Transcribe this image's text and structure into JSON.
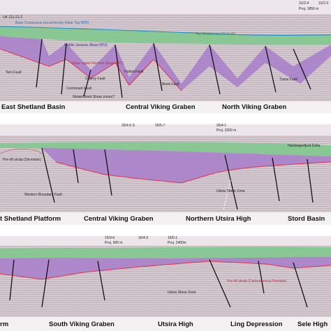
{
  "panels": [
    {
      "labels": [
        "UK 211-21-2",
        "31/2-4",
        "Proj. 1850 m",
        "31/2-3"
      ],
      "horizons": [
        "Base Cretaceous Unconformity (Near Top RP2)",
        "Top Cretaceous (Post-rift)",
        "Middle Jurassic (Base RP2)",
        "Base upper Permian (Base RP1)"
      ],
      "faults": [
        "Tern Fault",
        "Cormorant Fault",
        "Osprey Fault",
        "Ninian/Brent Shear zones?",
        "Hutton Fault",
        "Brent Fault",
        "Tusse Fault"
      ],
      "regions": [
        "East Shetland Basin",
        "Central Viking Graben",
        "North Viking Graben"
      ]
    },
    {
      "labels": [
        "25/4-6 S",
        "25/5-7",
        "26/4-1",
        "Proj. 3200 m"
      ],
      "horizons": [
        "Hardangerfjord Delta",
        "Pre-rift strata (Devonian)"
      ],
      "faults": [
        "Western Boundary Fault",
        "Utsira Shear Zone"
      ],
      "regions": [
        "t Shetland Platform",
        "Central Viking Graben",
        "Northern Utsira High",
        "Stord Basin"
      ]
    },
    {
      "labels": [
        "15/3-6",
        "Proj. 900 m",
        "16/4-3",
        "16/5-1",
        "Proj. 2400m"
      ],
      "horizons": [
        "Pre-rift strata (Carboniferous-Permian)"
      ],
      "faults": [
        "Utsira Shear Zone"
      ],
      "regions": [
        "rm",
        "South Viking Graben",
        "Utsira High",
        "Ling Depression",
        "Sele High"
      ]
    }
  ]
}
